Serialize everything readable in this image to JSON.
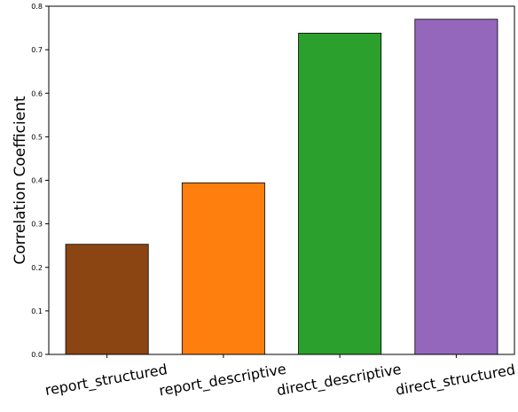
{
  "chart_data": {
    "type": "bar",
    "categories": [
      "report_structured",
      "report_descriptive",
      "direct_descriptive",
      "direct_structured"
    ],
    "values": [
      0.253,
      0.394,
      0.738,
      0.77
    ],
    "colors": [
      "#8b4513",
      "#ff7f0e",
      "#2ca02c",
      "#9467bd"
    ],
    "ylabel": "Correlation Coefficient",
    "xlabel": "",
    "ylim": [
      0.0,
      0.8
    ],
    "yticks": [
      "0.0",
      "0.1",
      "0.2",
      "0.3",
      "0.4",
      "0.5",
      "0.6",
      "0.7",
      "0.8"
    ],
    "grid": false,
    "legend": false
  }
}
